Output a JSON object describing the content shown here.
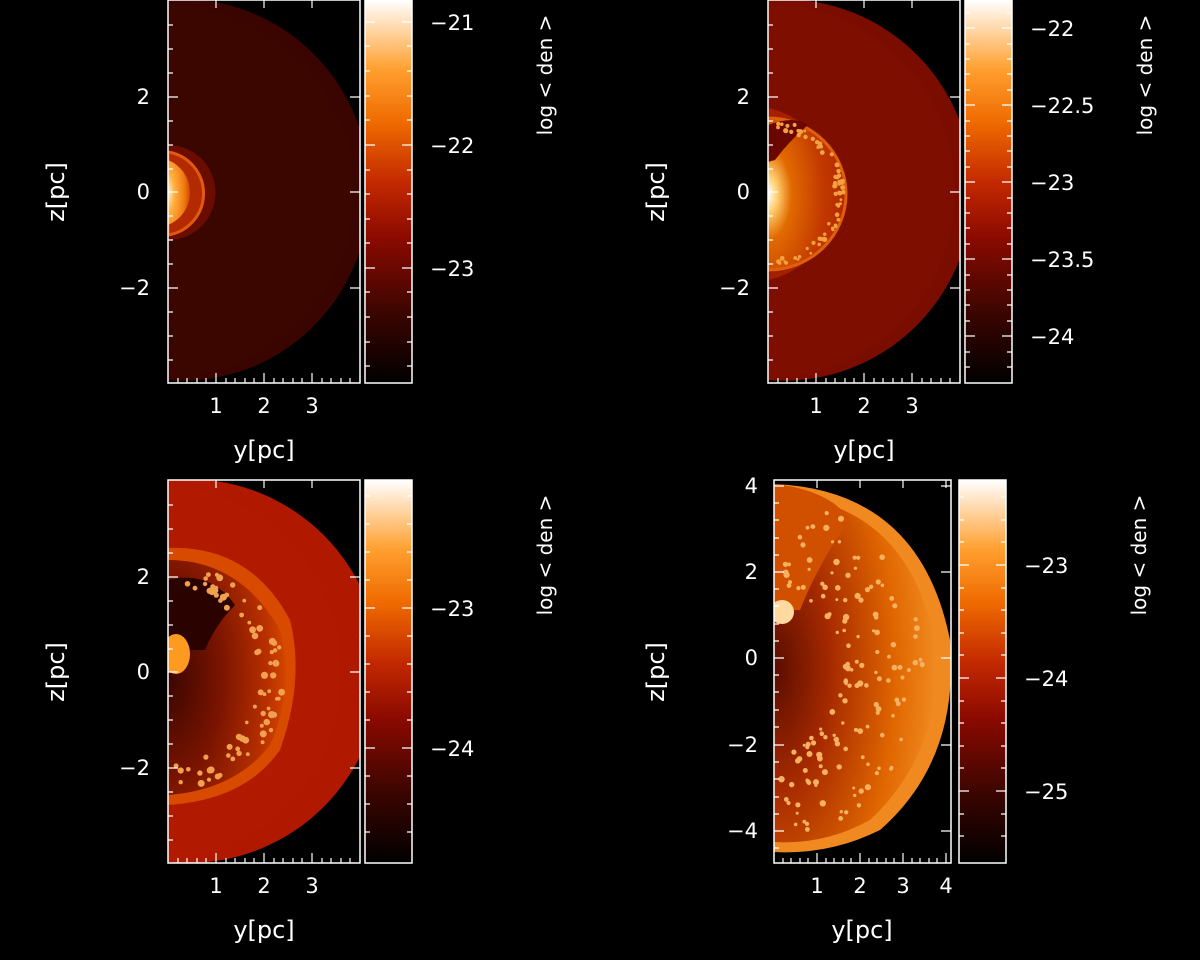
{
  "panels": [
    {
      "xlabel": "y[pc]",
      "ylabel": "z[pc]",
      "cbar_label": "log < den >",
      "xticks": [
        "1",
        "2",
        "3"
      ],
      "yticks": [
        "2",
        "0",
        "−2"
      ],
      "cbar_ticks": [
        "−21",
        "−22",
        "−23"
      ]
    },
    {
      "xlabel": "y[pc]",
      "ylabel": "z[pc]",
      "cbar_label": "log < den >",
      "xticks": [
        "1",
        "2",
        "3"
      ],
      "yticks": [
        "2",
        "0",
        "−2"
      ],
      "cbar_ticks": [
        "−22",
        "−22.5",
        "−23",
        "−23.5",
        "−24"
      ]
    },
    {
      "xlabel": "y[pc]",
      "ylabel": "z[pc]",
      "cbar_label": "log < den >",
      "xticks": [
        "1",
        "2",
        "3"
      ],
      "yticks": [
        "2",
        "0",
        "−2"
      ],
      "cbar_ticks": [
        "−23",
        "−24"
      ]
    },
    {
      "xlabel": "y[pc]",
      "ylabel": "z[pc]",
      "cbar_label": "log < den >",
      "xticks": [
        "1",
        "2",
        "3",
        "4"
      ],
      "yticks": [
        "4",
        "2",
        "0",
        "−2",
        "−4"
      ],
      "cbar_ticks": [
        "−23",
        "−24",
        "−25"
      ]
    }
  ],
  "chart_data": [
    {
      "type": "heatmap",
      "xlabel": "y[pc]",
      "ylabel": "z[pc]",
      "colorbar_label": "log < den >",
      "xlim": [
        0,
        4
      ],
      "ylim": [
        -3.8,
        3.8
      ],
      "clim": [
        -23.9,
        -20.7
      ],
      "colorbar_ticks": [
        -21,
        -22,
        -23
      ],
      "features": {
        "ambient_logden": -23.3,
        "shell_radius_pc": 0.9,
        "medium_radius_pc": 3.8
      }
    },
    {
      "type": "heatmap",
      "xlabel": "y[pc]",
      "ylabel": "z[pc]",
      "colorbar_label": "log < den >",
      "xlim": [
        0,
        4
      ],
      "ylim": [
        -3.8,
        3.8
      ],
      "clim": [
        -24.3,
        -21.8
      ],
      "colorbar_ticks": [
        -22,
        -22.5,
        -23,
        -23.5,
        -24
      ],
      "features": {
        "ambient_logden": -23.1,
        "shell_radius_pc": 1.7,
        "medium_radius_pc": 3.8
      }
    },
    {
      "type": "heatmap",
      "xlabel": "y[pc]",
      "ylabel": "z[pc]",
      "colorbar_label": "log < den >",
      "xlim": [
        0,
        4
      ],
      "ylim": [
        -3.8,
        3.8
      ],
      "clim": [
        -24.7,
        -22.4
      ],
      "colorbar_ticks": [
        -23,
        -24
      ],
      "features": {
        "ambient_logden": -23.6,
        "shell_radius_pc": 2.7,
        "medium_radius_pc": 3.8
      }
    },
    {
      "type": "heatmap",
      "xlabel": "y[pc]",
      "ylabel": "z[pc]",
      "colorbar_label": "log < den >",
      "xlim": [
        0,
        4.2
      ],
      "ylim": [
        -4.7,
        4.2
      ],
      "clim": [
        -25.6,
        -22.4
      ],
      "colorbar_ticks": [
        -23,
        -24,
        -25
      ],
      "features": {
        "ambient_logden": -23.4,
        "shell_radius_pc": 4.0,
        "medium_radius_pc": 4.1
      }
    }
  ]
}
